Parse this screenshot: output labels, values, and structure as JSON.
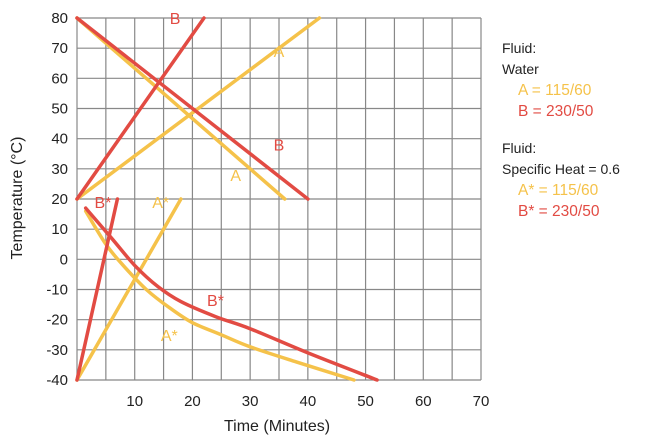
{
  "colors": {
    "yellow": "#f5c24a",
    "red": "#e24b43",
    "grid": "#888888",
    "text": "#222222"
  },
  "chart_data": {
    "type": "line",
    "xlabel": "Time (Minutes)",
    "ylabel": "Temperature (°C)",
    "xlim": [
      0,
      70
    ],
    "ylim": [
      -40,
      80
    ],
    "x_ticks": [
      10,
      20,
      30,
      40,
      50,
      60,
      70
    ],
    "y_ticks": [
      80,
      70,
      60,
      50,
      40,
      30,
      20,
      10,
      0,
      -10,
      -20,
      -30,
      -40
    ],
    "grid": true,
    "series": [
      {
        "name": "A",
        "color": "yellow",
        "points": [
          [
            0,
            20
          ],
          [
            42,
            80
          ]
        ]
      },
      {
        "name": "A",
        "color": "yellow",
        "points": [
          [
            0,
            80
          ],
          [
            36,
            20
          ]
        ]
      },
      {
        "name": "B",
        "color": "red",
        "points": [
          [
            0,
            20
          ],
          [
            22,
            80
          ]
        ]
      },
      {
        "name": "B",
        "color": "red",
        "points": [
          [
            0,
            80
          ],
          [
            40,
            20
          ]
        ]
      },
      {
        "name": "A*",
        "color": "yellow",
        "points": [
          [
            0,
            -40
          ],
          [
            18,
            20
          ]
        ]
      },
      {
        "name": "A*",
        "color": "yellow",
        "points": [
          [
            1.5,
            16
          ],
          [
            5,
            5
          ],
          [
            8,
            -2
          ],
          [
            12,
            -10
          ],
          [
            16,
            -16
          ],
          [
            20,
            -21
          ],
          [
            25,
            -25
          ],
          [
            30,
            -29
          ],
          [
            38,
            -34
          ],
          [
            48,
            -40
          ]
        ]
      },
      {
        "name": "B*",
        "color": "red",
        "points": [
          [
            0,
            -40
          ],
          [
            7,
            20
          ]
        ]
      },
      {
        "name": "B*",
        "color": "red",
        "points": [
          [
            1.5,
            17
          ],
          [
            6,
            7
          ],
          [
            10,
            -2
          ],
          [
            14,
            -9
          ],
          [
            18,
            -14
          ],
          [
            24,
            -19
          ],
          [
            30,
            -23
          ],
          [
            40,
            -31
          ],
          [
            52,
            -40
          ]
        ]
      }
    ],
    "annotations": [
      {
        "text": "B",
        "color": "red",
        "x": 17,
        "y": 78
      },
      {
        "text": "A",
        "color": "yellow",
        "x": 35,
        "y": 67
      },
      {
        "text": "B",
        "color": "red",
        "x": 35,
        "y": 36
      },
      {
        "text": "A",
        "color": "yellow",
        "x": 27.5,
        "y": 26
      },
      {
        "text": "B*",
        "color": "red",
        "x": 4.5,
        "y": 17
      },
      {
        "text": "A*",
        "color": "yellow",
        "x": 14.5,
        "y": 17
      },
      {
        "text": "B*",
        "color": "red",
        "x": 24,
        "y": -15.5
      },
      {
        "text": "A*",
        "color": "yellow",
        "x": 16,
        "y": -27
      }
    ]
  },
  "legend": {
    "groups": [
      {
        "heading": [
          "Fluid:",
          "Water"
        ],
        "entries": [
          {
            "text": "A = 115/60",
            "color": "yellow"
          },
          {
            "text": "B = 230/50",
            "color": "red"
          }
        ]
      },
      {
        "heading": [
          "Fluid:",
          "Specific Heat = 0.6"
        ],
        "entries": [
          {
            "text": "A* = 115/60",
            "color": "yellow"
          },
          {
            "text": "B* = 230/50",
            "color": "red"
          }
        ]
      }
    ]
  }
}
